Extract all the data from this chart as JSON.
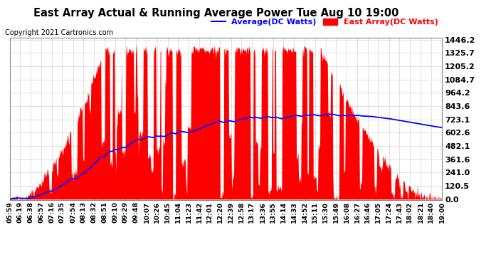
{
  "title": "East Array Actual & Running Average Power Tue Aug 10 19:00",
  "copyright": "Copyright 2021 Cartronics.com",
  "legend_avg": "Average(DC Watts)",
  "legend_east": "East Array(DC Watts)",
  "ylabel_values": [
    0.0,
    120.5,
    241.0,
    361.6,
    482.1,
    602.6,
    723.1,
    843.6,
    964.2,
    1084.7,
    1205.2,
    1325.7,
    1446.2
  ],
  "ymax": 1446.2,
  "ymin": 0.0,
  "fill_color": "#ff0000",
  "avg_line_color": "#0000ff",
  "grid_color": "#aaaaaa",
  "background_color": "#ffffff",
  "title_color": "#000000",
  "copyright_color": "#000000",
  "n_points": 794,
  "time_labels": [
    "05:59",
    "06:19",
    "06:38",
    "06:57",
    "07:16",
    "07:35",
    "07:54",
    "08:13",
    "08:32",
    "08:51",
    "09:10",
    "09:29",
    "09:48",
    "10:07",
    "10:26",
    "10:45",
    "11:04",
    "11:23",
    "11:42",
    "12:01",
    "12:20",
    "12:39",
    "12:58",
    "13:17",
    "13:36",
    "13:55",
    "14:14",
    "14:33",
    "14:52",
    "15:11",
    "15:30",
    "15:49",
    "16:08",
    "16:27",
    "16:46",
    "17:05",
    "17:24",
    "17:43",
    "18:02",
    "18:21",
    "18:40",
    "19:00"
  ]
}
